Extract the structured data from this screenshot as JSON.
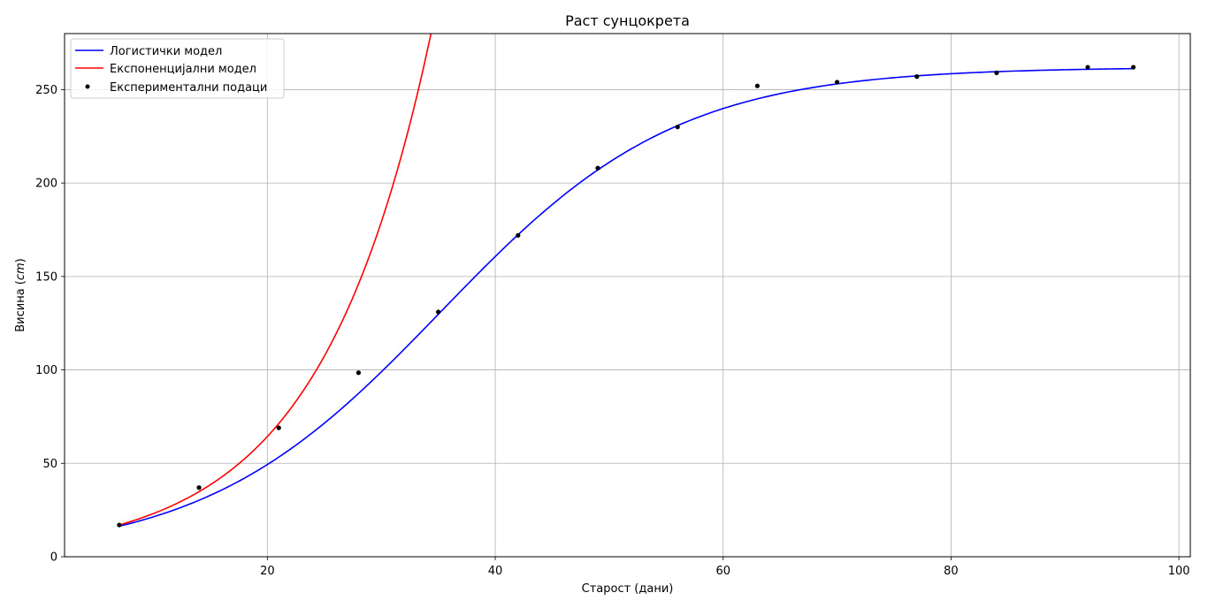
{
  "chart_data": {
    "type": "line",
    "title": "Раст сунцокрета",
    "xlabel": "Старост (дани)",
    "ylabel_text": "Висина (",
    "ylabel_unit": "cm",
    "ylabel_close": ")",
    "xlim": [
      2.2,
      101.0
    ],
    "ylim": [
      0,
      280
    ],
    "x_ticks": [
      20,
      40,
      60,
      80,
      100
    ],
    "y_ticks": [
      0,
      50,
      100,
      150,
      200,
      250
    ],
    "grid": true,
    "legend_position": "top-left",
    "series": [
      {
        "name": "Логистички модел",
        "kind": "line",
        "color": "#0000ff",
        "model": "logistic",
        "params": {
          "K": 262.0,
          "r": 0.0961,
          "t0": 35.2
        },
        "x_range": [
          7,
          96
        ]
      },
      {
        "name": "Експоненцијални модел",
        "kind": "line",
        "color": "#ff0000",
        "model": "exponential",
        "params": {
          "a": 17.0,
          "b": 0.1024,
          "t_start": 7
        },
        "x_range": [
          7,
          35
        ]
      },
      {
        "name": "Експериментални подаци",
        "kind": "scatter",
        "color": "#000000",
        "x": [
          7,
          14,
          21,
          28,
          35,
          42,
          49,
          56,
          63,
          70,
          77,
          84,
          92,
          96
        ],
        "y": [
          17.0,
          37.0,
          69.0,
          98.5,
          131.0,
          172.0,
          208.0,
          230.0,
          252.0,
          254.0,
          257.0,
          259.0,
          262.0,
          262.0
        ]
      }
    ]
  }
}
